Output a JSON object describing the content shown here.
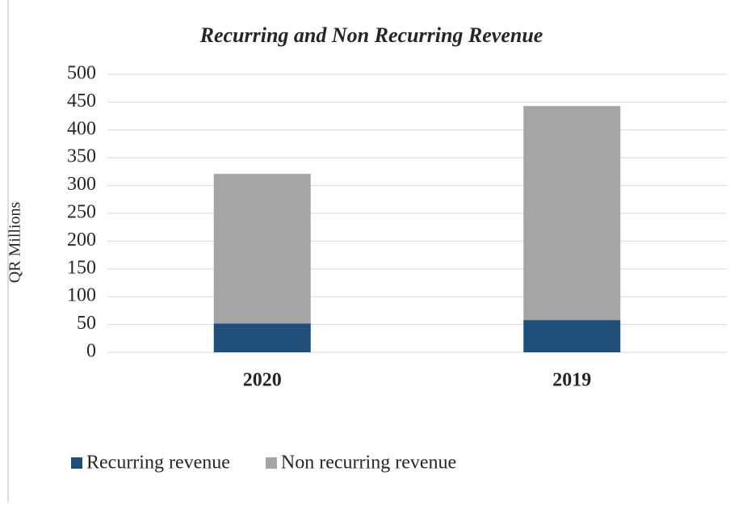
{
  "chart_data": {
    "type": "stacked_bar",
    "title": "Recurring and Non Recurring Revenue",
    "y_label": "QR Millions",
    "categories": [
      "2020",
      "2019"
    ],
    "series": [
      {
        "name": "Recurring revenue",
        "color": "#1f4e79",
        "values": [
          52,
          58
        ]
      },
      {
        "name": "Non recurring revenue",
        "color": "#a5a5a5",
        "values": [
          269,
          385
        ]
      }
    ],
    "ylim": [
      0,
      500
    ],
    "yticks": [
      0,
      50,
      100,
      150,
      200,
      250,
      300,
      350,
      400,
      450,
      500
    ],
    "grid": true,
    "legend": "bottom"
  }
}
